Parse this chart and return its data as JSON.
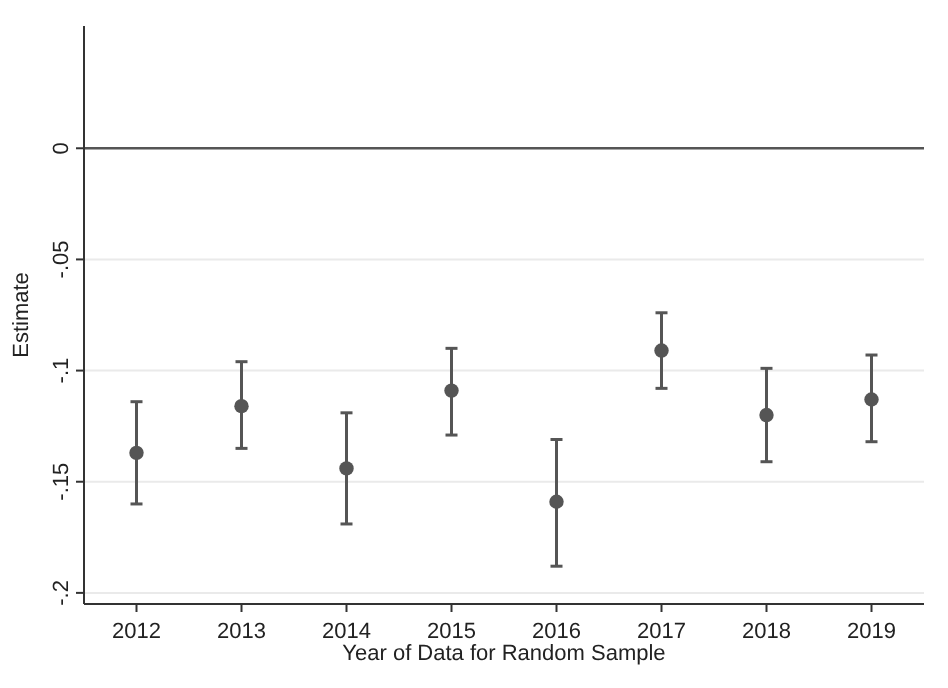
{
  "chart_data": {
    "type": "scatter",
    "xlabel": "Year of Data for Random Sample",
    "ylabel": "Estimate",
    "x": [
      2012,
      2013,
      2014,
      2015,
      2016,
      2017,
      2018,
      2019
    ],
    "values": [
      -0.137,
      -0.116,
      -0.144,
      -0.109,
      -0.159,
      -0.091,
      -0.12,
      -0.113
    ],
    "errors": [
      [
        -0.16,
        -0.114
      ],
      [
        -0.135,
        -0.096
      ],
      [
        -0.169,
        -0.119
      ],
      [
        -0.129,
        -0.09
      ],
      [
        -0.188,
        -0.131
      ],
      [
        -0.108,
        -0.074
      ],
      [
        -0.141,
        -0.099
      ],
      [
        -0.132,
        -0.093
      ]
    ],
    "color": "#555555",
    "marker": "circle",
    "xlim": [
      2011.5,
      2019.5
    ],
    "xticks": [
      2012,
      2013,
      2014,
      2015,
      2016,
      2017,
      2018,
      2019
    ],
    "ylim": [
      -0.205,
      0.055
    ],
    "yticks": [
      {
        "value": 0,
        "label": "0"
      },
      {
        "value": -0.05,
        "label": "-.05"
      },
      {
        "value": -0.1,
        "label": "-.1"
      },
      {
        "value": -0.15,
        "label": "-.15"
      },
      {
        "value": -0.2,
        "label": "-.2"
      }
    ],
    "grid": "y",
    "ref_lines": [
      {
        "axis": "y",
        "value": 0,
        "color": "#555555"
      }
    ]
  }
}
